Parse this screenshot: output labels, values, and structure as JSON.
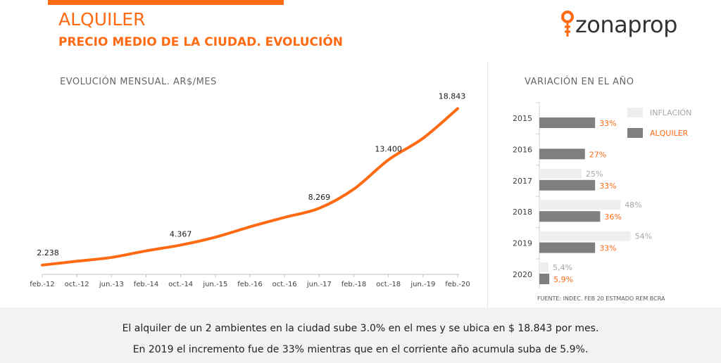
{
  "header": {
    "title": "ALQUILER",
    "subtitle": "PRECIO MEDIO DE LA CIUDAD. EVOLUCIÓN",
    "brand_color": "#ff6a13"
  },
  "logo": {
    "text": "zonaprop",
    "icon": "location-pin-key-icon"
  },
  "footer": {
    "line1": "El alquiler de un 2 ambientes en la ciudad sube 3.0% en el mes y se ubica en $ 18.843 por mes.",
    "line2": "En 2019 el incremento fue de 33% mientras que en el corriente año acumula suba de 5.9%."
  },
  "chart_data": [
    {
      "type": "line",
      "title": "EVOLUCIÓN MENSUAL. AR$/MES",
      "series_color": "#ff6a13",
      "x_ticks": [
        "feb.-12",
        "oct.-12",
        "jun.-13",
        "feb.-14",
        "oct.-14",
        "jun.-15",
        "feb.-16",
        "oct.-16",
        "jun.-17",
        "feb.-18",
        "oct.-18",
        "jun.-19",
        "feb.-20"
      ],
      "x": [
        "feb.-12",
        "oct.-12",
        "jun.-13",
        "feb.-14",
        "oct.-14",
        "jun.-15",
        "feb.-16",
        "oct.-16",
        "jun.-17",
        "feb.-18",
        "oct.-18",
        "jun.-19",
        "feb.-20"
      ],
      "values": [
        2238,
        2650,
        3050,
        3750,
        4367,
        5200,
        6300,
        7300,
        8269,
        10300,
        13400,
        15700,
        18843
      ],
      "annotations": [
        {
          "x": "feb.-12",
          "label": "2.238"
        },
        {
          "x": "oct.-14",
          "label": "4.367"
        },
        {
          "x": "jun.-17",
          "label": "8.269"
        },
        {
          "x": "oct.-18",
          "label": "13.400"
        },
        {
          "x": "feb.-20",
          "label": "18.843"
        }
      ],
      "ylim": [
        2000,
        19500
      ],
      "grid": false
    },
    {
      "type": "bar",
      "orientation": "horizontal",
      "title": "VARIACIÓN EN EL AÑO",
      "categories": [
        "2015",
        "2016",
        "2017",
        "2018",
        "2019",
        "2020"
      ],
      "series": [
        {
          "name": "INFLACIÓN",
          "color": "#eeeeee",
          "label_color": "#a6a6a6",
          "values": [
            null,
            null,
            25,
            48,
            54,
            5.4
          ],
          "labels": [
            "",
            "",
            "25%",
            "48%",
            "54%",
            "5,4%"
          ]
        },
        {
          "name": "ALQUILER",
          "color": "#7f7f7f",
          "label_color": "#ff6a13",
          "values": [
            33,
            27,
            33,
            36,
            33,
            5.9
          ],
          "labels": [
            "33%",
            "27%",
            "33%",
            "36%",
            "33%",
            "5,9%"
          ]
        }
      ],
      "xlim": [
        0,
        60
      ],
      "legend": "top-right",
      "source": "FUENTE: INDEC. FEB 20 ESTMADO REM BCRA"
    }
  ]
}
